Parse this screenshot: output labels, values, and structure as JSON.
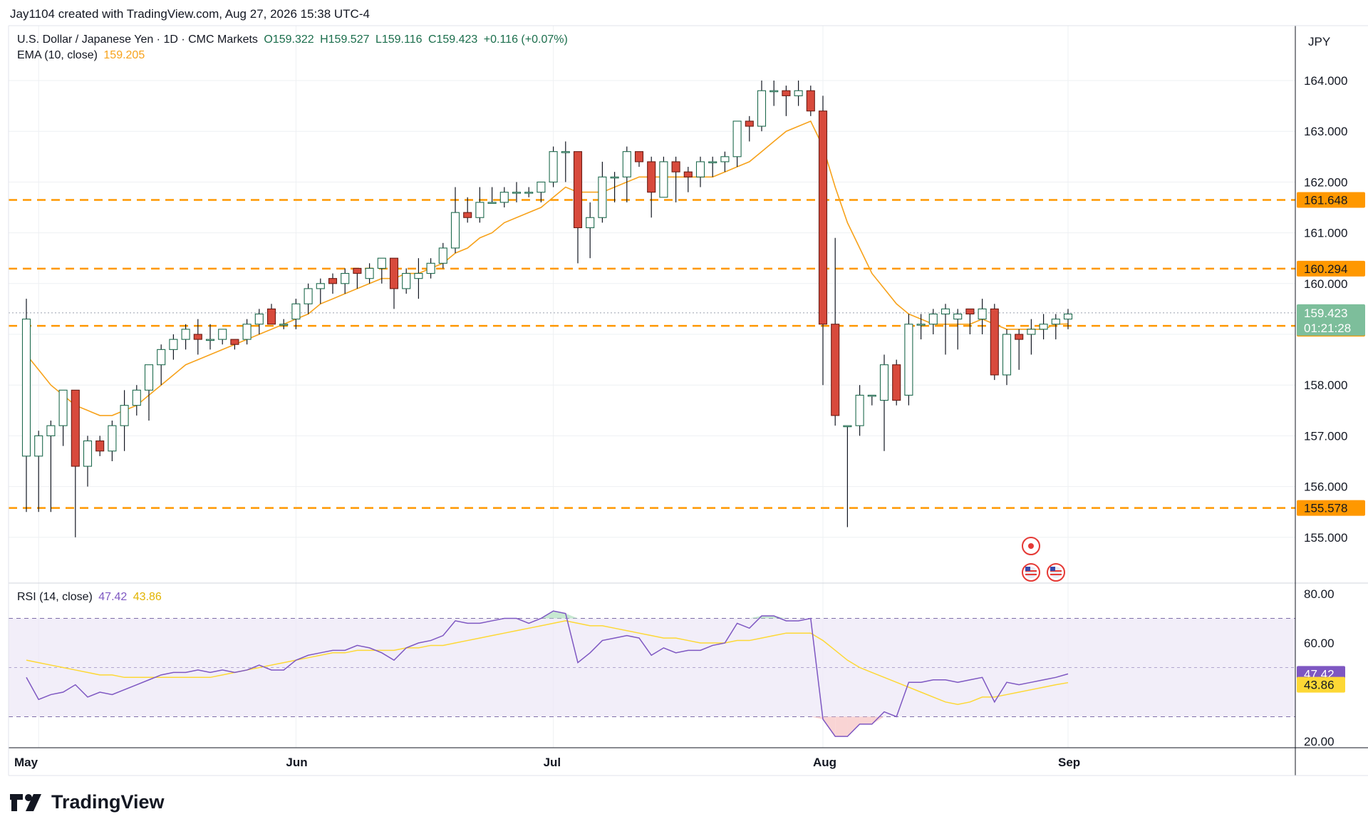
{
  "header": {
    "attribution": "Jay1104 created with TradingView.com, Aug 27, 2026 15:38 UTC-4"
  },
  "legend": {
    "symbol": "U.S. Dollar / Japanese Yen · 1D · CMC Markets",
    "open": "O159.322",
    "high": "H159.527",
    "low": "L159.116",
    "close": "C159.423",
    "change": "+0.116 (+0.07%)",
    "ema_label": "EMA (10, close)",
    "ema_value": "159.205",
    "rsi_label": "RSI (14, close)",
    "rsi_value": "47.42",
    "rsi_ma_value": "43.86"
  },
  "currency": "JPY",
  "brand": "TradingView",
  "colors": {
    "up": "#26a69a",
    "up_fill": "#ffffff",
    "down": "#d84a3c",
    "ema": "#f7a21b",
    "level": "#ff9800",
    "rsi": "#7e57c2",
    "rsi_ma": "#fdd835",
    "last_price": "#7dbe9b"
  },
  "chart_data": [
    {
      "type": "candlestick",
      "title": "U.S. Dollar / Japanese Yen · 1D · CMC Markets",
      "y_ticks": [
        "155.000",
        "156.000",
        "157.000",
        "158.000",
        "159.000",
        "160.000",
        "161.000",
        "162.000",
        "163.000",
        "164.000"
      ],
      "ylim": [
        154.1,
        165.0
      ],
      "x_tick_labels": [
        "May",
        "Jun",
        "Jul",
        "Aug",
        "Sep"
      ],
      "x_tick_index": [
        1,
        22,
        43,
        65,
        85
      ],
      "candles": [
        {
          "o": 156.6,
          "h": 159.7,
          "l": 155.5,
          "c": 159.3
        },
        {
          "o": 156.6,
          "h": 157.1,
          "l": 155.5,
          "c": 157.0
        },
        {
          "o": 157.0,
          "h": 157.3,
          "l": 155.5,
          "c": 157.2
        },
        {
          "o": 157.2,
          "h": 157.9,
          "l": 156.8,
          "c": 157.9
        },
        {
          "o": 157.9,
          "h": 157.9,
          "l": 155.0,
          "c": 156.4
        },
        {
          "o": 156.4,
          "h": 157.0,
          "l": 156.0,
          "c": 156.9
        },
        {
          "o": 156.9,
          "h": 157.0,
          "l": 156.6,
          "c": 156.7
        },
        {
          "o": 156.7,
          "h": 157.3,
          "l": 156.5,
          "c": 157.2
        },
        {
          "o": 157.2,
          "h": 157.9,
          "l": 156.7,
          "c": 157.6
        },
        {
          "o": 157.6,
          "h": 158.0,
          "l": 157.4,
          "c": 157.9
        },
        {
          "o": 157.9,
          "h": 158.4,
          "l": 157.3,
          "c": 158.4
        },
        {
          "o": 158.4,
          "h": 158.8,
          "l": 158.0,
          "c": 158.7
        },
        {
          "o": 158.7,
          "h": 159.0,
          "l": 158.5,
          "c": 158.9
        },
        {
          "o": 158.9,
          "h": 159.2,
          "l": 158.7,
          "c": 159.1
        },
        {
          "o": 159.0,
          "h": 159.3,
          "l": 158.6,
          "c": 158.9
        },
        {
          "o": 158.9,
          "h": 159.2,
          "l": 158.7,
          "c": 158.9
        },
        {
          "o": 158.9,
          "h": 159.1,
          "l": 158.8,
          "c": 159.1
        },
        {
          "o": 158.9,
          "h": 158.9,
          "l": 158.7,
          "c": 158.8
        },
        {
          "o": 158.9,
          "h": 159.3,
          "l": 158.8,
          "c": 159.2
        },
        {
          "o": 159.2,
          "h": 159.5,
          "l": 159.0,
          "c": 159.4
        },
        {
          "o": 159.5,
          "h": 159.6,
          "l": 159.2,
          "c": 159.2
        },
        {
          "o": 159.2,
          "h": 159.3,
          "l": 159.1,
          "c": 159.2
        },
        {
          "o": 159.3,
          "h": 159.7,
          "l": 159.1,
          "c": 159.6
        },
        {
          "o": 159.6,
          "h": 160.0,
          "l": 159.4,
          "c": 159.9
        },
        {
          "o": 159.9,
          "h": 160.1,
          "l": 159.6,
          "c": 160.0
        },
        {
          "o": 160.1,
          "h": 160.2,
          "l": 159.8,
          "c": 160.0
        },
        {
          "o": 160.0,
          "h": 160.3,
          "l": 159.8,
          "c": 160.2
        },
        {
          "o": 160.3,
          "h": 160.3,
          "l": 159.9,
          "c": 160.2
        },
        {
          "o": 160.1,
          "h": 160.4,
          "l": 160.0,
          "c": 160.3
        },
        {
          "o": 160.3,
          "h": 160.5,
          "l": 160.0,
          "c": 160.5
        },
        {
          "o": 160.5,
          "h": 160.5,
          "l": 159.5,
          "c": 159.9
        },
        {
          "o": 159.9,
          "h": 160.3,
          "l": 159.8,
          "c": 160.2
        },
        {
          "o": 160.1,
          "h": 160.5,
          "l": 159.7,
          "c": 160.2
        },
        {
          "o": 160.2,
          "h": 160.5,
          "l": 160.1,
          "c": 160.4
        },
        {
          "o": 160.4,
          "h": 160.8,
          "l": 160.3,
          "c": 160.7
        },
        {
          "o": 160.7,
          "h": 161.9,
          "l": 160.6,
          "c": 161.4
        },
        {
          "o": 161.4,
          "h": 161.7,
          "l": 161.2,
          "c": 161.3
        },
        {
          "o": 161.3,
          "h": 161.9,
          "l": 161.2,
          "c": 161.6
        },
        {
          "o": 161.6,
          "h": 161.9,
          "l": 161.6,
          "c": 161.6
        },
        {
          "o": 161.6,
          "h": 161.9,
          "l": 161.5,
          "c": 161.8
        },
        {
          "o": 161.8,
          "h": 162.0,
          "l": 161.6,
          "c": 161.8
        },
        {
          "o": 161.8,
          "h": 161.9,
          "l": 161.7,
          "c": 161.8
        },
        {
          "o": 161.8,
          "h": 162.0,
          "l": 161.6,
          "c": 162.0
        },
        {
          "o": 162.0,
          "h": 162.7,
          "l": 161.9,
          "c": 162.6
        },
        {
          "o": 162.6,
          "h": 162.8,
          "l": 162.0,
          "c": 162.6
        },
        {
          "o": 162.6,
          "h": 162.6,
          "l": 160.4,
          "c": 161.1
        },
        {
          "o": 161.1,
          "h": 161.6,
          "l": 160.5,
          "c": 161.3
        },
        {
          "o": 161.3,
          "h": 162.4,
          "l": 161.2,
          "c": 162.1
        },
        {
          "o": 162.1,
          "h": 162.2,
          "l": 161.6,
          "c": 162.1
        },
        {
          "o": 162.1,
          "h": 162.7,
          "l": 161.6,
          "c": 162.6
        },
        {
          "o": 162.6,
          "h": 162.6,
          "l": 162.3,
          "c": 162.4
        },
        {
          "o": 162.4,
          "h": 162.5,
          "l": 161.3,
          "c": 161.8
        },
        {
          "o": 161.7,
          "h": 162.5,
          "l": 161.7,
          "c": 162.4
        },
        {
          "o": 162.4,
          "h": 162.5,
          "l": 161.6,
          "c": 162.2
        },
        {
          "o": 162.2,
          "h": 162.3,
          "l": 161.8,
          "c": 162.1
        },
        {
          "o": 162.1,
          "h": 162.5,
          "l": 161.9,
          "c": 162.4
        },
        {
          "o": 162.4,
          "h": 162.5,
          "l": 162.1,
          "c": 162.4
        },
        {
          "o": 162.4,
          "h": 162.6,
          "l": 162.2,
          "c": 162.5
        },
        {
          "o": 162.5,
          "h": 163.2,
          "l": 162.3,
          "c": 163.2
        },
        {
          "o": 163.2,
          "h": 163.3,
          "l": 162.8,
          "c": 163.1
        },
        {
          "o": 163.1,
          "h": 164.0,
          "l": 163.0,
          "c": 163.8
        },
        {
          "o": 163.8,
          "h": 164.0,
          "l": 163.5,
          "c": 163.8
        },
        {
          "o": 163.8,
          "h": 163.9,
          "l": 163.3,
          "c": 163.7
        },
        {
          "o": 163.7,
          "h": 164.0,
          "l": 163.5,
          "c": 163.8
        },
        {
          "o": 163.8,
          "h": 163.9,
          "l": 163.3,
          "c": 163.4
        },
        {
          "o": 163.4,
          "h": 163.7,
          "l": 158.0,
          "c": 159.2
        },
        {
          "o": 159.2,
          "h": 160.9,
          "l": 157.2,
          "c": 157.4
        },
        {
          "o": 157.2,
          "h": 157.2,
          "l": 155.2,
          "c": 157.2
        },
        {
          "o": 157.2,
          "h": 158.0,
          "l": 157.0,
          "c": 157.8
        },
        {
          "o": 157.8,
          "h": 157.8,
          "l": 157.6,
          "c": 157.8
        },
        {
          "o": 157.7,
          "h": 158.6,
          "l": 156.7,
          "c": 158.4
        },
        {
          "o": 158.4,
          "h": 158.5,
          "l": 157.6,
          "c": 157.7
        },
        {
          "o": 157.8,
          "h": 159.4,
          "l": 157.6,
          "c": 159.2
        },
        {
          "o": 159.2,
          "h": 159.4,
          "l": 158.9,
          "c": 159.2
        },
        {
          "o": 159.2,
          "h": 159.5,
          "l": 159.0,
          "c": 159.4
        },
        {
          "o": 159.4,
          "h": 159.6,
          "l": 158.6,
          "c": 159.5
        },
        {
          "o": 159.3,
          "h": 159.5,
          "l": 158.7,
          "c": 159.4
        },
        {
          "o": 159.5,
          "h": 159.5,
          "l": 159.0,
          "c": 159.4
        },
        {
          "o": 159.3,
          "h": 159.7,
          "l": 159.0,
          "c": 159.5
        },
        {
          "o": 159.5,
          "h": 159.6,
          "l": 158.1,
          "c": 158.2
        },
        {
          "o": 158.2,
          "h": 159.1,
          "l": 158.0,
          "c": 159.0
        },
        {
          "o": 159.0,
          "h": 159.1,
          "l": 158.3,
          "c": 158.9
        },
        {
          "o": 159.0,
          "h": 159.3,
          "l": 158.6,
          "c": 159.1
        },
        {
          "o": 159.1,
          "h": 159.4,
          "l": 158.9,
          "c": 159.2
        },
        {
          "o": 159.2,
          "h": 159.4,
          "l": 158.9,
          "c": 159.3
        },
        {
          "o": 159.3,
          "h": 159.5,
          "l": 159.1,
          "c": 159.4
        }
      ],
      "ema": [
        158.6,
        158.3,
        158.0,
        157.8,
        157.6,
        157.5,
        157.4,
        157.4,
        157.5,
        157.6,
        157.8,
        158.0,
        158.2,
        158.4,
        158.5,
        158.6,
        158.7,
        158.8,
        158.9,
        159.0,
        159.1,
        159.2,
        159.3,
        159.4,
        159.6,
        159.7,
        159.8,
        159.9,
        160.0,
        160.1,
        160.1,
        160.2,
        160.2,
        160.3,
        160.4,
        160.6,
        160.7,
        160.9,
        161.0,
        161.2,
        161.3,
        161.4,
        161.5,
        161.7,
        161.9,
        161.8,
        161.8,
        161.8,
        161.9,
        162.0,
        162.1,
        162.1,
        162.1,
        162.1,
        162.1,
        162.1,
        162.1,
        162.2,
        162.3,
        162.4,
        162.6,
        162.8,
        163.0,
        163.1,
        163.2,
        162.7,
        161.9,
        161.2,
        160.7,
        160.2,
        159.9,
        159.6,
        159.4,
        159.3,
        159.2,
        159.2,
        159.2,
        159.2,
        159.3,
        159.2,
        159.1,
        159.1,
        159.1,
        159.1,
        159.2,
        159.205
      ],
      "levels": [
        {
          "label": "161.648",
          "value": 161.648
        },
        {
          "label": "160.294",
          "value": 160.294
        },
        {
          "label": "159.167",
          "value": 159.167
        },
        {
          "label": "155.578",
          "value": 155.578
        }
      ],
      "last_price_label": "159.423",
      "countdown": "01:21:28",
      "ema_last_label": "159.205"
    },
    {
      "type": "line",
      "title": "RSI (14, close)",
      "ylim": [
        20,
        80
      ],
      "y_ticks": [
        "20.00",
        "60.00",
        "80.00"
      ],
      "band": [
        30,
        70
      ],
      "series": [
        {
          "name": "RSI",
          "values": [
            46,
            37,
            39,
            40,
            43,
            38,
            40,
            39,
            41,
            43,
            45,
            47,
            48,
            48,
            49,
            48,
            49,
            48,
            49,
            51,
            49,
            49,
            53,
            55,
            56,
            57,
            57,
            59,
            58,
            56,
            53,
            58,
            60,
            61,
            63,
            69,
            68,
            68,
            69,
            70,
            70,
            68,
            70,
            73,
            72,
            52,
            56,
            61,
            62,
            63,
            62,
            55,
            58,
            56,
            57,
            57,
            59,
            60,
            68,
            66,
            71,
            71,
            69,
            69,
            70,
            29,
            22,
            22,
            27,
            27,
            32,
            30,
            44,
            44,
            45,
            45,
            44,
            45,
            46,
            36,
            44,
            43,
            44,
            45,
            46,
            47.42
          ]
        },
        {
          "name": "RSI MA",
          "values": [
            53,
            52,
            51,
            50,
            49,
            48,
            47,
            47,
            46,
            46,
            46,
            46,
            46,
            46,
            46,
            46,
            47,
            48,
            49,
            50,
            51,
            52,
            53,
            54,
            55,
            56,
            56,
            57,
            57,
            57,
            57,
            58,
            58,
            59,
            59,
            60,
            61,
            62,
            63,
            64,
            65,
            66,
            67,
            68,
            69,
            68,
            67,
            67,
            66,
            65,
            64,
            63,
            62,
            62,
            61,
            60,
            60,
            60,
            61,
            61,
            62,
            63,
            64,
            64,
            64,
            61,
            57,
            53,
            50,
            48,
            46,
            44,
            42,
            40,
            38,
            36,
            35,
            36,
            38,
            38,
            39,
            40,
            41,
            42,
            43,
            43.86
          ]
        }
      ]
    }
  ]
}
